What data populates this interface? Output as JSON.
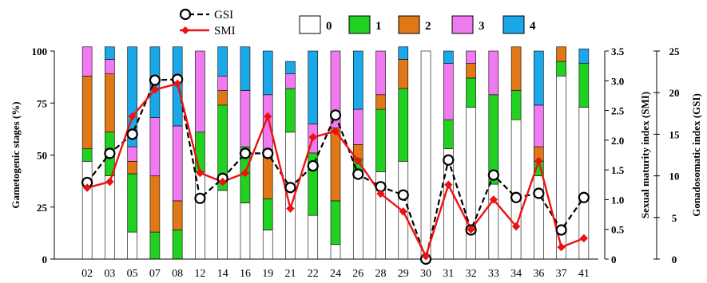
{
  "chart_data": {
    "type": "bar",
    "stacked": true,
    "categories": [
      "02",
      "03",
      "05",
      "07",
      "08",
      "12",
      "14",
      "16",
      "19",
      "21",
      "22",
      "24",
      "26",
      "28",
      "29",
      "30",
      "31",
      "32",
      "33",
      "34",
      "36",
      "37",
      "41"
    ],
    "stage_series": [
      {
        "name": "0",
        "color": "#ffffff",
        "values": [
          47,
          40,
          13,
          0,
          0,
          42,
          33,
          27,
          14,
          61,
          21,
          7,
          41,
          42,
          47,
          100,
          53,
          73,
          36,
          67,
          40,
          88,
          73
        ]
      },
      {
        "name": "1",
        "color": "#22d022",
        "values": [
          6,
          21,
          28,
          13,
          14,
          19,
          41,
          27,
          15,
          21,
          30,
          21,
          7,
          30,
          35,
          0,
          14,
          14,
          43,
          14,
          7,
          7,
          21
        ]
      },
      {
        "name": "2",
        "color": "#e07818",
        "values": [
          35,
          28,
          6,
          27,
          14,
          0,
          7,
          0,
          21,
          0,
          0,
          35,
          7,
          7,
          14,
          0,
          0,
          7,
          0,
          21,
          7,
          7,
          0
        ]
      },
      {
        "name": "3",
        "color": "#f07af0",
        "values": [
          14,
          7,
          7,
          28,
          36,
          39,
          7,
          27,
          29,
          7,
          14,
          37,
          17,
          21,
          0,
          0,
          27,
          6,
          21,
          0,
          20,
          0,
          0
        ]
      },
      {
        "name": "4",
        "color": "#1aa8e8",
        "values": [
          0,
          6,
          48,
          34,
          38,
          0,
          14,
          21,
          21,
          6,
          35,
          0,
          28,
          0,
          6,
          0,
          6,
          0,
          0,
          0,
          26,
          0,
          7
        ]
      }
    ],
    "line_series": [
      {
        "name": "GSI",
        "axis": "GSI",
        "style": "dashed-black-open-circle",
        "values": [
          9.2,
          12.7,
          15.0,
          21.5,
          21.6,
          7.3,
          9.7,
          12.7,
          12.7,
          8.6,
          11.2,
          17.3,
          10.2,
          8.7,
          7.7,
          0,
          11.9,
          3.5,
          10.1,
          7.4,
          7.9,
          3.5,
          7.4
        ]
      },
      {
        "name": "SMI",
        "axis": "SMI",
        "style": "solid-red-diamond",
        "values": [
          1.2,
          1.3,
          2.4,
          2.85,
          2.95,
          1.45,
          1.3,
          1.45,
          2.4,
          0.85,
          2.05,
          2.15,
          1.65,
          1.1,
          0.8,
          0.05,
          1.25,
          0.5,
          1.0,
          0.55,
          1.65,
          0.2,
          0.35
        ]
      }
    ],
    "axes": {
      "left": {
        "label": "Gametogenic stages  (%)",
        "range": [
          0,
          100
        ],
        "ticks": [
          "0",
          "25",
          "50",
          "75",
          "100"
        ]
      },
      "right_smi": {
        "label": "Sexual   maturity index (SMI)",
        "range": [
          0,
          3.5
        ],
        "ticks": [
          "0",
          "0.5",
          "1.0",
          "1.5",
          "2.0",
          "2.5",
          "3.0",
          "3.5"
        ]
      },
      "right_gsi": {
        "label": "Gonadosomatic index (GSI)",
        "range": [
          0,
          25
        ],
        "ticks": [
          "0",
          "5",
          "10",
          "15",
          "20",
          "25"
        ]
      }
    },
    "grid": false,
    "legend_position": "top"
  }
}
